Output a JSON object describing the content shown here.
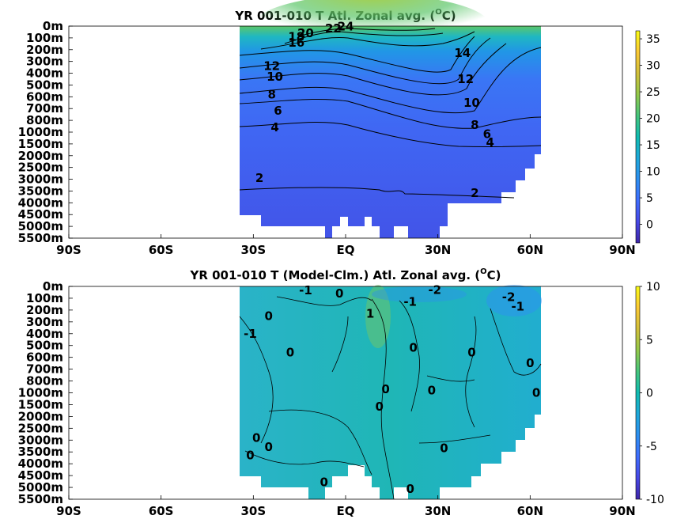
{
  "chart_data": [
    {
      "type": "heatmap",
      "title": "YR 001-010 T Atl. Zonal avg. (",
      "title_unit_sup": "O",
      "title_unit_tail": "C)",
      "x_ticks": [
        "90S",
        "60S",
        "30S",
        "EQ",
        "30N",
        "60N",
        "90N"
      ],
      "x_values": [
        -90,
        -60,
        -30,
        0,
        30,
        60,
        90
      ],
      "y_ticks": [
        "0m",
        "100m",
        "200m",
        "300m",
        "400m",
        "500m",
        "600m",
        "700m",
        "800m",
        "1000m",
        "1500m",
        "2000m",
        "2500m",
        "3000m",
        "3500m",
        "4000m",
        "4500m",
        "5000m",
        "5500m"
      ],
      "y_values": [
        0,
        100,
        200,
        300,
        400,
        500,
        600,
        700,
        800,
        1000,
        1500,
        2000,
        2500,
        3000,
        3500,
        4000,
        4500,
        5000,
        5500
      ],
      "xlim": [
        -90,
        90
      ],
      "colorbar": {
        "ticks": [
          "35",
          "30",
          "25",
          "20",
          "15",
          "10",
          "5",
          "0"
        ],
        "tick_values": [
          35,
          30,
          25,
          20,
          15,
          10,
          5,
          0
        ],
        "range": [
          -3.5,
          36.5
        ]
      },
      "contour_labels": [
        {
          "text": "24",
          "lat": 0,
          "depth": 5
        },
        {
          "text": "22",
          "lat": -4,
          "depth": 20
        },
        {
          "text": "20",
          "lat": -13,
          "depth": 60
        },
        {
          "text": "18",
          "lat": -16,
          "depth": 90
        },
        {
          "text": "16",
          "lat": -16,
          "depth": 140
        },
        {
          "text": "12",
          "lat": -24,
          "depth": 340
        },
        {
          "text": "10",
          "lat": -23,
          "depth": 430
        },
        {
          "text": "8",
          "lat": -24,
          "depth": 580
        },
        {
          "text": "6",
          "lat": -22,
          "depth": 720
        },
        {
          "text": "4",
          "lat": -23,
          "depth": 920
        },
        {
          "text": "2",
          "lat": -28,
          "depth": 2950
        },
        {
          "text": "14",
          "lat": 38,
          "depth": 230
        },
        {
          "text": "12",
          "lat": 39,
          "depth": 450
        },
        {
          "text": "10",
          "lat": 41,
          "depth": 650
        },
        {
          "text": "8",
          "lat": 42,
          "depth": 880
        },
        {
          "text": "6",
          "lat": 46,
          "depth": 1080
        },
        {
          "text": "4",
          "lat": 47,
          "depth": 1430
        },
        {
          "text": "2",
          "lat": 42,
          "depth": 3580
        }
      ]
    },
    {
      "type": "heatmap",
      "title": "YR 001-010 T (Model-Clm.) Atl. Zonal avg. (",
      "title_unit_sup": "O",
      "title_unit_tail": "C)",
      "x_ticks": [
        "90S",
        "60S",
        "30S",
        "EQ",
        "30N",
        "60N",
        "90N"
      ],
      "x_values": [
        -90,
        -60,
        -30,
        0,
        30,
        60,
        90
      ],
      "y_ticks": [
        "0m",
        "100m",
        "200m",
        "300m",
        "400m",
        "500m",
        "600m",
        "700m",
        "800m",
        "1000m",
        "1500m",
        "2000m",
        "2500m",
        "3000m",
        "3500m",
        "4000m",
        "4500m",
        "5000m",
        "5500m"
      ],
      "y_values": [
        0,
        100,
        200,
        300,
        400,
        500,
        600,
        700,
        800,
        1000,
        1500,
        2000,
        2500,
        3000,
        3500,
        4000,
        4500,
        5000,
        5500
      ],
      "xlim": [
        -90,
        90
      ],
      "colorbar": {
        "ticks": [
          "10",
          "5",
          "0",
          "-5",
          "-10"
        ],
        "tick_values": [
          10,
          5,
          0,
          -5,
          -10
        ],
        "range": [
          -10,
          10
        ]
      },
      "contour_labels": [
        {
          "text": "-1",
          "lat": -13,
          "depth": 35
        },
        {
          "text": "0",
          "lat": -2,
          "depth": 60
        },
        {
          "text": "1",
          "lat": 8,
          "depth": 230
        },
        {
          "text": "-1",
          "lat": 21,
          "depth": 130
        },
        {
          "text": "-2",
          "lat": 29,
          "depth": 30
        },
        {
          "text": "-2",
          "lat": 53,
          "depth": 90
        },
        {
          "text": "-1",
          "lat": 56,
          "depth": 170
        },
        {
          "text": "0",
          "lat": -25,
          "depth": 250
        },
        {
          "text": "-1",
          "lat": -31,
          "depth": 400
        },
        {
          "text": "0",
          "lat": -18,
          "depth": 560
        },
        {
          "text": "0",
          "lat": 22,
          "depth": 520
        },
        {
          "text": "0",
          "lat": 41,
          "depth": 560
        },
        {
          "text": "0",
          "lat": 60,
          "depth": 650
        },
        {
          "text": "0",
          "lat": 13,
          "depth": 940
        },
        {
          "text": "0",
          "lat": 28,
          "depth": 960
        },
        {
          "text": "0",
          "lat": 62,
          "depth": 1000
        },
        {
          "text": "0",
          "lat": 11,
          "depth": 1580
        },
        {
          "text": "0",
          "lat": -29,
          "depth": 2900
        },
        {
          "text": "0",
          "lat": -25,
          "depth": 3300
        },
        {
          "text": "0",
          "lat": -31,
          "depth": 3650
        },
        {
          "text": "0",
          "lat": 32,
          "depth": 3340
        },
        {
          "text": "0",
          "lat": -7,
          "depth": 4780
        },
        {
          "text": "0",
          "lat": 21,
          "depth": 5060
        }
      ]
    }
  ]
}
